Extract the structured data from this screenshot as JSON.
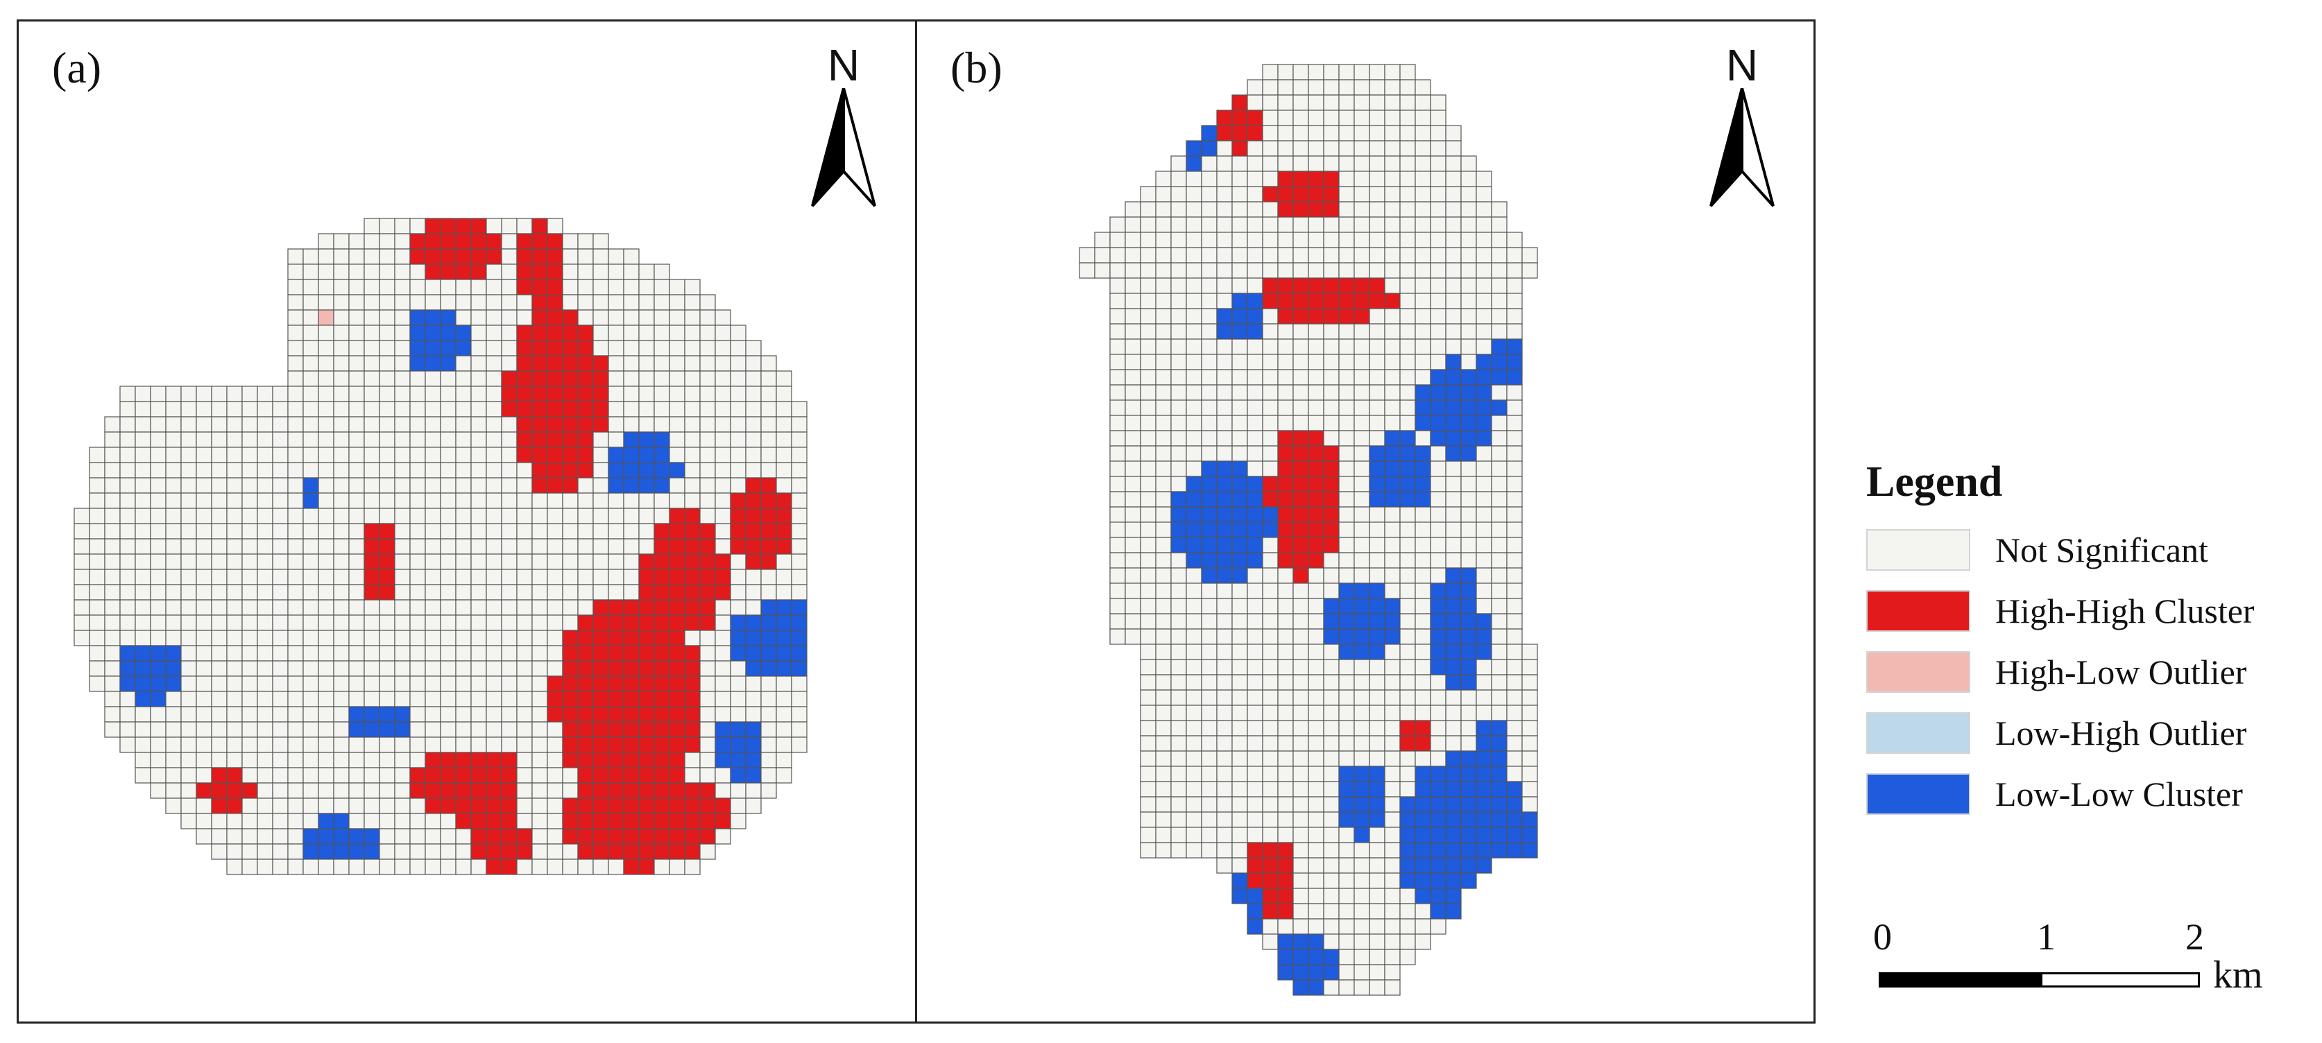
{
  "panels": [
    {
      "label": "(a)",
      "north": "N"
    },
    {
      "label": "(b)",
      "north": "N"
    }
  ],
  "legend": {
    "title": "Legend",
    "items": [
      {
        "label": "Not Significant",
        "color": "#f4f4f1"
      },
      {
        "label": "High-High Cluster",
        "color": "#e31a1c"
      },
      {
        "label": "High-Low Outlier",
        "color": "#f2b9b3"
      },
      {
        "label": "Low-High Outlier",
        "color": "#bcd8ea"
      },
      {
        "label": "Low-Low Cluster",
        "color": "#1f5bdd"
      }
    ]
  },
  "scale_bar": {
    "ticks": [
      "0",
      "1",
      "2"
    ],
    "unit": "km"
  },
  "colors": {
    "grid_line": "#555555",
    "frame": "#222222"
  }
}
